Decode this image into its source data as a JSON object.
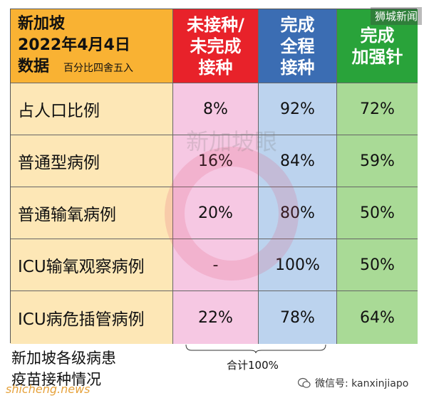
{
  "source_badge": "狮城新闻",
  "header": {
    "title_line1": "新加坡",
    "title_line2": "2022年4月4日",
    "title_line3": "数据",
    "title_note": "百分比四舍五入",
    "col_unvax": [
      "未接种/",
      "未完成",
      "接种"
    ],
    "col_full": [
      "完成",
      "全程",
      "接种"
    ],
    "col_boost": [
      "完成",
      "加强针"
    ]
  },
  "rows": [
    {
      "label": "占人口比例",
      "unvax": "8%",
      "full": "92%",
      "boost": "72%"
    },
    {
      "label": "普通型病例",
      "unvax": "16%",
      "full": "84%",
      "boost": "59%"
    },
    {
      "label": "普通输氧病例",
      "unvax": "20%",
      "full": "80%",
      "boost": "50%"
    },
    {
      "label": "ICU输氧观察病例",
      "unvax": "-",
      "full": "100%",
      "boost": "50%"
    },
    {
      "label": "ICU病危插管病例",
      "unvax": "22%",
      "full": "78%",
      "boost": "64%"
    }
  ],
  "sum_note": "合计100%",
  "caption_line1": "新加坡各级病患",
  "caption_line2": "疫苗接种情况",
  "watermark_center": "新加坡眼",
  "watermark_site": "shicheng.news",
  "wechat_label": "微信号: kanxinjiapo",
  "colors": {
    "title_bg": "#f9b233",
    "unvax_header": "#e8222a",
    "full_header": "#3b6db3",
    "boost_header": "#29a33a",
    "label_cell": "#fde7b6",
    "unvax_cell": "#f6c8e3",
    "full_cell": "#bcd3ee",
    "boost_cell": "#a9da96"
  }
}
